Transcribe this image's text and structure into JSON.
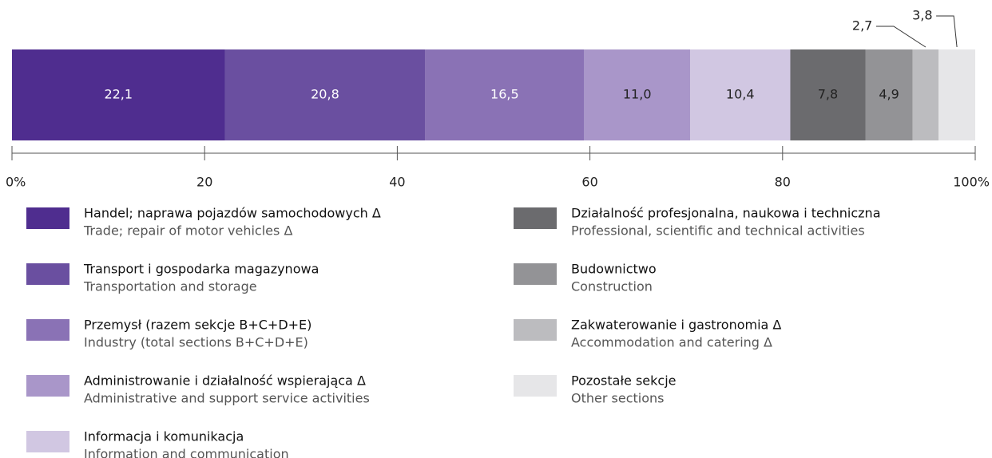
{
  "chart_data": {
    "type": "stacked-bar-100",
    "series": [
      {
        "name": "Handel; naprawa pojazdów samochodowych Δ",
        "name_en": "Trade; repair of motor vehicles Δ",
        "color": "#4f2d8f",
        "values": [
          22.1
        ],
        "value_labels": [
          "22,1"
        ]
      },
      {
        "name": "Transport i gospodarka magazynowa",
        "name_en": "Transportation and storage",
        "color": "#6a4fa0",
        "values": [
          20.8
        ],
        "value_labels": [
          "20,8"
        ]
      },
      {
        "name": "Przemysł (razem sekcje B+C+D+E)",
        "name_en": "Industry (total sections B+C+D+E)",
        "color": "#8a72b5",
        "values": [
          16.5
        ],
        "value_labels": [
          "16,5"
        ]
      },
      {
        "name": "Administrowanie i działalność wspierająca Δ",
        "name_en": "Administrative and support service activities",
        "color": "#a996c9",
        "values": [
          11.0
        ],
        "value_labels": [
          "11,0"
        ]
      },
      {
        "name": "Informacja i komunikacja",
        "name_en": "Information and communication",
        "color": "#d1c7e2",
        "values": [
          10.4
        ],
        "value_labels": [
          "10,4"
        ]
      },
      {
        "name": "Działalność profesjonalna, naukowa i techniczna",
        "name_en": "Professional, scientific and technical activities",
        "color": "#6b6b6e",
        "values": [
          7.8
        ],
        "value_labels": [
          "7,8"
        ]
      },
      {
        "name": "Budownictwo",
        "name_en": "Construction",
        "color": "#939396",
        "values": [
          4.9
        ],
        "value_labels": [
          "4,9"
        ]
      },
      {
        "name": "Zakwaterowanie i gastronomia Δ",
        "name_en": "Accommodation and catering Δ",
        "color": "#bcbcbf",
        "values": [
          2.7
        ],
        "value_labels": [
          "2,7"
        ]
      },
      {
        "name": "Pozostałe sekcje",
        "name_en": "Other sections",
        "color": "#e6e6e8",
        "values": [
          3.8
        ],
        "value_labels": [
          "3,8"
        ]
      }
    ],
    "xlim": [
      0,
      100
    ],
    "xticks": [
      {
        "value": 0,
        "label": "0%"
      },
      20,
      40,
      60,
      80,
      {
        "value": 100,
        "label": "100%"
      }
    ]
  }
}
